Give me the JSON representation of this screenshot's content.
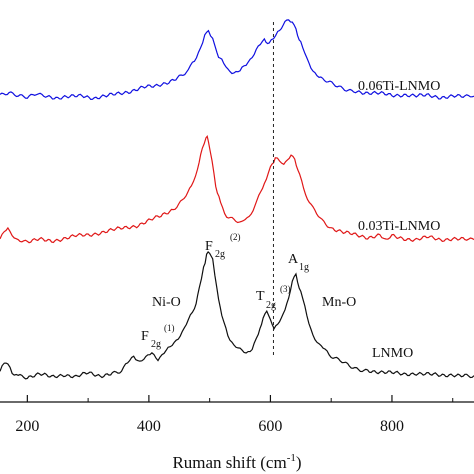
{
  "chart_data": {
    "type": "line",
    "title": "",
    "xlabel": "Ruman shift (cm",
    "xlabel_sup": "-1",
    "xlabel_close": ")",
    "ylabel": "",
    "xlim": [
      155,
      935
    ],
    "xticks": [
      200,
      400,
      600,
      800
    ],
    "xtick_labels": [
      "200",
      "400",
      "600",
      "800"
    ],
    "reference_line_x": 605,
    "series": [
      {
        "name": "0.06Ti-LNMO",
        "color": "#1010e0",
        "x": [
          155,
          170,
          185,
          200,
          215,
          230,
          250,
          270,
          290,
          310,
          330,
          350,
          370,
          390,
          410,
          430,
          450,
          465,
          475,
          485,
          492,
          498,
          505,
          512,
          520,
          530,
          540,
          550,
          560,
          570,
          580,
          590,
          598,
          605,
          612,
          618,
          624,
          630,
          636,
          642,
          650,
          660,
          670,
          680,
          695,
          710,
          725,
          740,
          760,
          780,
          800,
          820,
          840,
          860,
          880,
          900,
          920,
          935
        ],
        "y": [
          0.04,
          0.07,
          0.02,
          0.0,
          0.06,
          0.03,
          0.0,
          0.01,
          0.03,
          0.0,
          0.02,
          0.05,
          0.08,
          0.12,
          0.13,
          0.18,
          0.24,
          0.32,
          0.42,
          0.58,
          0.72,
          0.74,
          0.66,
          0.52,
          0.42,
          0.33,
          0.29,
          0.3,
          0.38,
          0.48,
          0.58,
          0.65,
          0.62,
          0.66,
          0.74,
          0.8,
          0.86,
          0.9,
          0.88,
          0.78,
          0.62,
          0.44,
          0.32,
          0.24,
          0.18,
          0.13,
          0.1,
          0.08,
          0.06,
          0.05,
          0.03,
          0.04,
          0.02,
          0.03,
          0.01,
          0.02,
          0.01,
          0.02
        ]
      },
      {
        "name": "0.03Ti-LNMO",
        "color": "#e01818",
        "x": [
          155,
          162,
          168,
          175,
          185,
          200,
          220,
          240,
          260,
          280,
          300,
          320,
          340,
          360,
          380,
          400,
          420,
          440,
          455,
          470,
          480,
          488,
          494,
          498,
          504,
          510,
          518,
          528,
          540,
          552,
          565,
          578,
          590,
          600,
          608,
          615,
          622,
          628,
          634,
          640,
          648,
          658,
          670,
          685,
          700,
          720,
          740,
          760,
          780,
          790,
          800,
          820,
          840,
          860,
          880,
          900,
          920,
          935
        ],
        "y": [
          0.04,
          0.1,
          0.12,
          0.04,
          0.01,
          0.0,
          0.02,
          0.01,
          0.03,
          0.05,
          0.06,
          0.08,
          0.1,
          0.12,
          0.14,
          0.18,
          0.22,
          0.28,
          0.35,
          0.46,
          0.62,
          0.8,
          0.9,
          0.86,
          0.68,
          0.48,
          0.32,
          0.22,
          0.18,
          0.16,
          0.22,
          0.34,
          0.5,
          0.62,
          0.72,
          0.68,
          0.64,
          0.7,
          0.74,
          0.7,
          0.56,
          0.4,
          0.28,
          0.18,
          0.12,
          0.08,
          0.06,
          0.04,
          0.06,
          0.03,
          0.05,
          0.03,
          0.02,
          0.04,
          0.02,
          0.03,
          0.02,
          0.02
        ]
      },
      {
        "name": "LNMO",
        "color": "#101010",
        "x": [
          155,
          162,
          168,
          175,
          185,
          200,
          220,
          240,
          260,
          280,
          300,
          320,
          340,
          355,
          365,
          375,
          385,
          395,
          405,
          415,
          425,
          435,
          445,
          455,
          465,
          475,
          483,
          490,
          495,
          500,
          505,
          512,
          520,
          530,
          540,
          550,
          560,
          570,
          580,
          588,
          594,
          600,
          606,
          612,
          618,
          624,
          630,
          636,
          642,
          650,
          660,
          670,
          680,
          690,
          700,
          715,
          730,
          745,
          760,
          780,
          800,
          820,
          840,
          860,
          880,
          900,
          920,
          935
        ],
        "y": [
          0.04,
          0.1,
          0.11,
          0.04,
          0.01,
          0.0,
          0.02,
          0.0,
          0.02,
          0.0,
          0.03,
          0.01,
          0.03,
          0.05,
          0.1,
          0.16,
          0.12,
          0.14,
          0.18,
          0.14,
          0.18,
          0.22,
          0.28,
          0.34,
          0.42,
          0.52,
          0.66,
          0.82,
          0.92,
          0.94,
          0.88,
          0.66,
          0.46,
          0.32,
          0.24,
          0.2,
          0.18,
          0.22,
          0.32,
          0.44,
          0.48,
          0.44,
          0.36,
          0.4,
          0.46,
          0.5,
          0.6,
          0.72,
          0.76,
          0.64,
          0.46,
          0.32,
          0.24,
          0.2,
          0.16,
          0.12,
          0.08,
          0.06,
          0.05,
          0.04,
          0.03,
          0.02,
          0.03,
          0.02,
          0.01,
          0.02,
          0.01,
          0.01
        ]
      }
    ],
    "annotations": {
      "ni_o": "Ni-O",
      "mn_o": "Mn-O",
      "f2g1": {
        "base": "F",
        "sub": "2g",
        "sup": "(1)"
      },
      "f2g2": {
        "base": "F",
        "sub": "2g",
        "sup": "(2)"
      },
      "t2g3": {
        "base": "T",
        "sub": "2g",
        "sup": "(3)"
      },
      "a1g": {
        "base": "A",
        "sub": "1g"
      }
    },
    "grid": false,
    "legend": "labels beside curves"
  }
}
